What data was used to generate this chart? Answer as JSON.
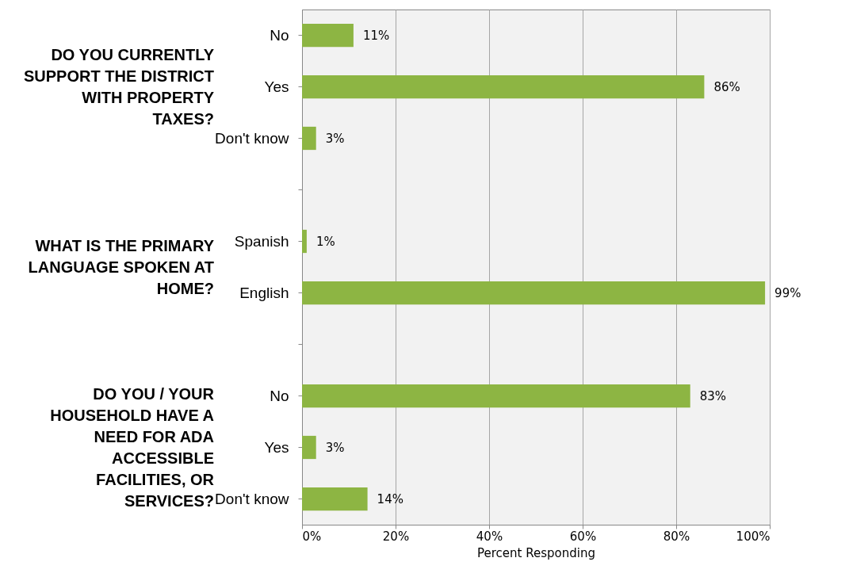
{
  "chart_data": {
    "type": "bar",
    "orientation": "horizontal",
    "xlabel": "Percent Responding",
    "categories": [
      "No",
      "Yes",
      "Don't know",
      null,
      "Spanish",
      "English",
      null,
      "No",
      "Yes",
      "Don't know"
    ],
    "values": [
      11,
      86,
      3,
      null,
      1,
      99,
      null,
      83,
      3,
      14
    ],
    "value_labels": [
      "11%",
      "86%",
      "3%",
      null,
      "1%",
      "99%",
      null,
      "83%",
      "3%",
      "14%"
    ],
    "color": "#8db543",
    "xlim": [
      0,
      100
    ],
    "xticks": [
      {
        "value": 0,
        "label": "0%"
      },
      {
        "value": 20,
        "label": "20%"
      },
      {
        "value": 40,
        "label": "40%"
      },
      {
        "value": 60,
        "label": "60%"
      },
      {
        "value": 80,
        "label": "80%"
      },
      {
        "value": 100,
        "label": "100%"
      }
    ],
    "grid": "x",
    "annotations": [
      "DO YOU CURRENTLY SUPPORT THE DISTRICT WITH PROPERTY TAXES?",
      "WHAT IS THE PRIMARY LANGUAGE SPOKEN AT HOME?",
      "DO YOU / YOUR HOUSEHOLD HAVE A NEED FOR ADA ACCESSIBLE FACILITIES, OR SERVICES?"
    ]
  }
}
